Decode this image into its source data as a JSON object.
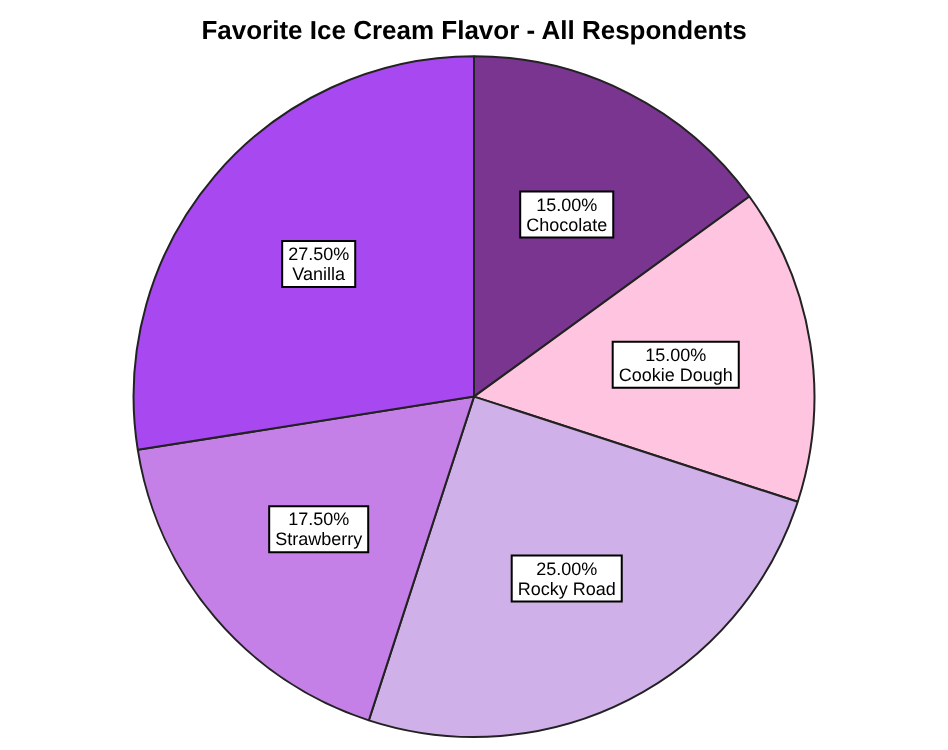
{
  "chart_data": {
    "type": "pie",
    "title": "Favorite Ice Cream Flavor - All Respondents",
    "categories": [
      "Chocolate",
      "Cookie Dough",
      "Rocky Road",
      "Strawberry",
      "Vanilla"
    ],
    "values": [
      15,
      15,
      25,
      17.5,
      27.5
    ],
    "value_labels": [
      "15.00%",
      "15.00%",
      "25.00%",
      "17.50%",
      "27.50%"
    ],
    "colors": [
      "#7a3590",
      "#ffc4e0",
      "#d0b0e8",
      "#c580e8",
      "#a848f0"
    ],
    "legend": false
  }
}
